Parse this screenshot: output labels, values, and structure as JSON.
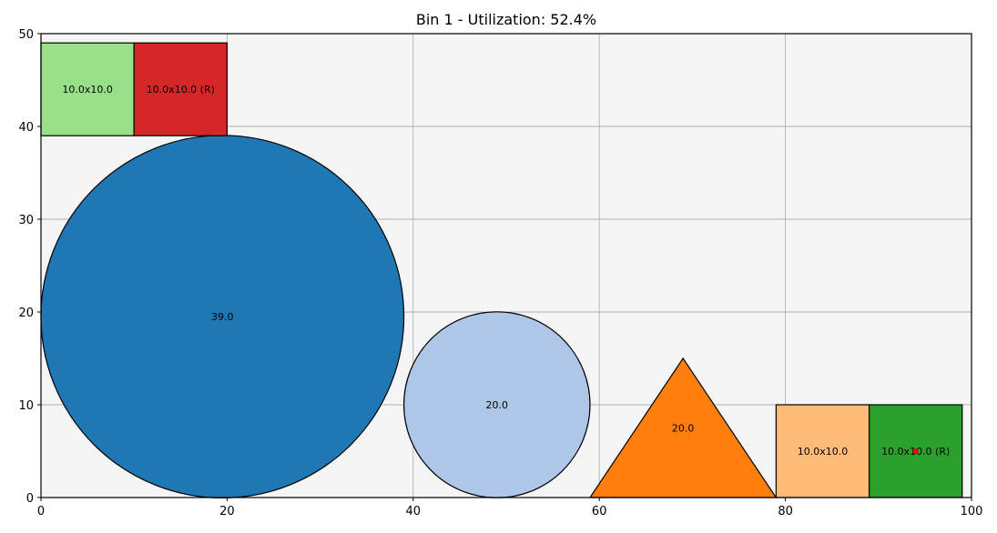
{
  "chart_data": {
    "type": "packing",
    "title": "Bin 1 - Utilization: 52.4%",
    "xlim": [
      0,
      100
    ],
    "ylim": [
      0,
      50
    ],
    "x_ticks": [
      0,
      20,
      40,
      60,
      80,
      100
    ],
    "y_ticks": [
      0,
      10,
      20,
      30,
      40,
      50
    ],
    "grid": true,
    "background_color": "#f5f5f5",
    "items": [
      {
        "kind": "circle",
        "cx": 19.5,
        "cy": 19.5,
        "r": 19.5,
        "color": "#1f77b4",
        "label": "39.0"
      },
      {
        "kind": "circle",
        "cx": 49,
        "cy": 10,
        "r": 10,
        "color": "#aec7e8",
        "label": "20.0"
      },
      {
        "kind": "triangle",
        "points": [
          [
            59,
            0
          ],
          [
            79,
            0
          ],
          [
            69,
            15
          ]
        ],
        "color": "#ff7f0e",
        "label": "20.0",
        "label_pos": [
          69,
          7.5
        ]
      },
      {
        "kind": "rect",
        "x": 0,
        "y": 39,
        "w": 10,
        "h": 10,
        "color": "#98df8a",
        "label": "10.0x10.0"
      },
      {
        "kind": "rect",
        "x": 10,
        "y": 39,
        "w": 10,
        "h": 10,
        "color": "#d62728",
        "label": "10.0x10.0 (R)"
      },
      {
        "kind": "rect",
        "x": 79,
        "y": 0,
        "w": 10,
        "h": 10,
        "color": "#ffbb78",
        "label": "10.0x10.0"
      },
      {
        "kind": "rect",
        "x": 89,
        "y": 0,
        "w": 10,
        "h": 10,
        "color": "#2ca02c",
        "label": "10.0x10.0 (R)"
      }
    ],
    "markers": [
      {
        "x": 94,
        "y": 5,
        "color": "#ff0000"
      }
    ]
  }
}
